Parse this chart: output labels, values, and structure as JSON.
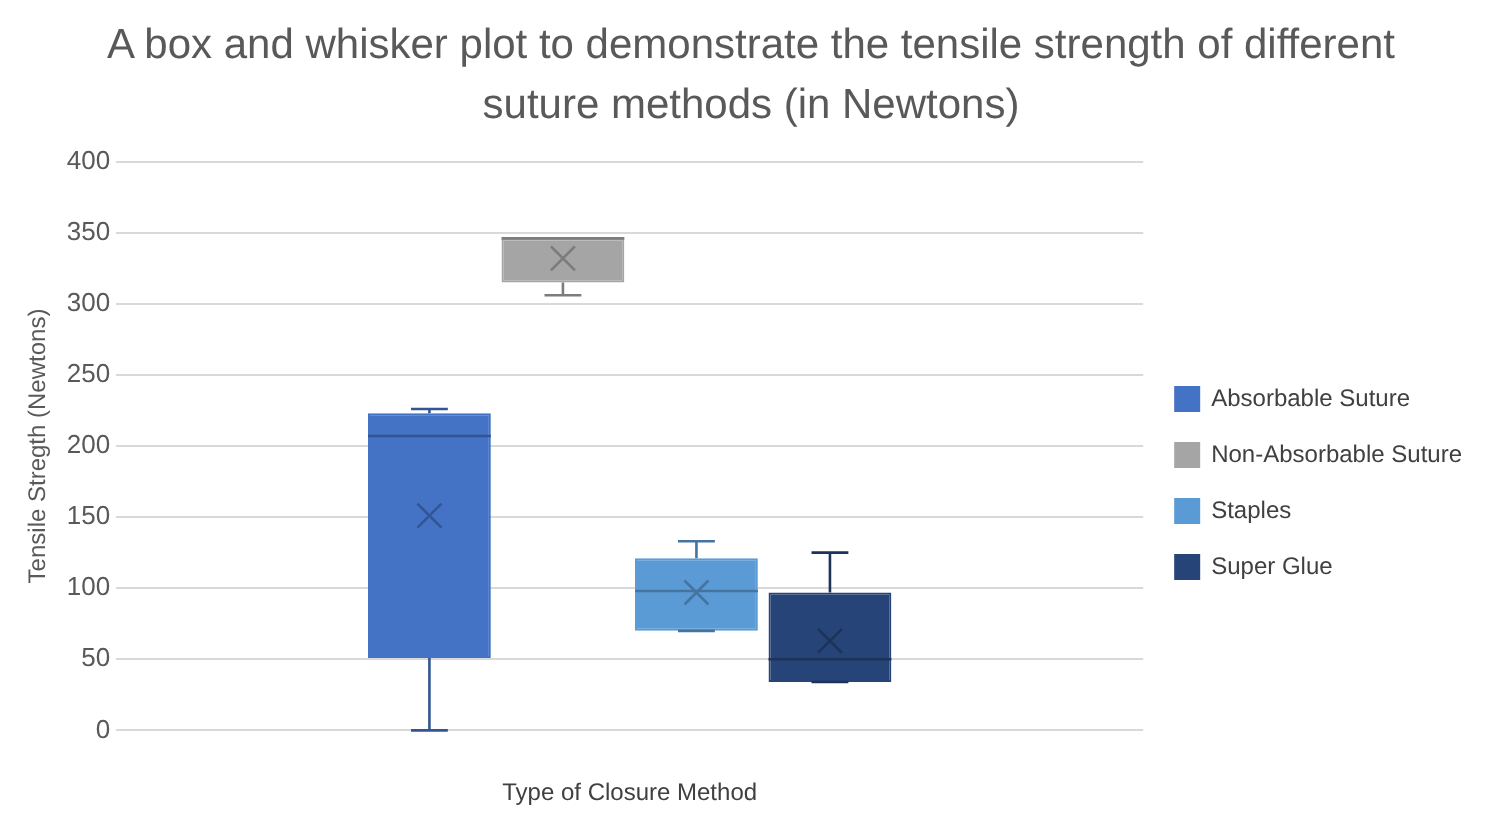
{
  "chart_data": {
    "type": "box",
    "title": "A box and whisker plot to demonstrate the tensile strength of different suture methods (in Newtons)",
    "xlabel": "Type of Closure Method",
    "ylabel": "Tensile Stregth (Newtons)",
    "categories": [
      null
    ],
    "ylim": [
      0,
      400
    ],
    "yticks": [
      0,
      50,
      100,
      150,
      200,
      250,
      300,
      350,
      400
    ],
    "grid": "y",
    "legend": "right",
    "marker": "cross",
    "series": [
      {
        "name": "Absorbable Suture",
        "color": "#4472c4",
        "boxes": [
          {
            "low": 0,
            "q1": 51,
            "median": 207,
            "q3": 223,
            "high": 226,
            "mean": 151
          }
        ]
      },
      {
        "name": "Non-Absorbable Suture",
        "color": "#a5a5a5",
        "boxes": [
          {
            "low": 306,
            "q1": 315,
            "median": 346,
            "q3": 346,
            "high": 346,
            "mean": 332
          }
        ]
      },
      {
        "name": "Staples",
        "color": "#5b9bd5",
        "boxes": [
          {
            "low": 70,
            "q1": 70,
            "median": 98,
            "q3": 121,
            "high": 133,
            "mean": 97
          }
        ]
      },
      {
        "name": "Super Glue",
        "color": "#264478",
        "boxes": [
          {
            "low": 34,
            "q1": 34,
            "median": 50,
            "q3": 97,
            "high": 125,
            "mean": 63
          }
        ]
      }
    ]
  }
}
